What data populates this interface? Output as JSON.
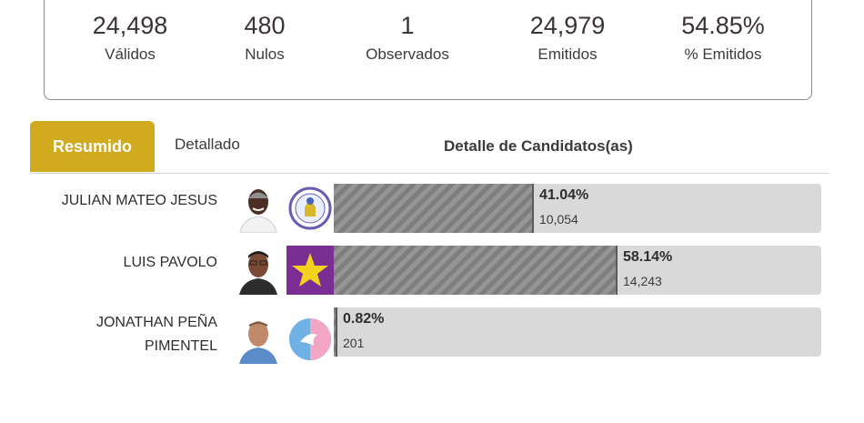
{
  "summary": {
    "validos": {
      "value": "24,498",
      "label": "Válidos"
    },
    "nulos": {
      "value": "480",
      "label": "Nulos"
    },
    "observados": {
      "value": "1",
      "label": "Observados"
    },
    "emitidos": {
      "value": "24,979",
      "label": "Emitidos"
    },
    "pct_emitidos": {
      "value": "54.85%",
      "label": "% Emitidos"
    }
  },
  "tabs": {
    "resumido": "Resumido",
    "detallado": "Detallado"
  },
  "section_title": "Detalle de Candidatos(as)",
  "colors": {
    "accent": "#d2aa1e",
    "bar": "#8a8a8a",
    "track": "#d9d9d9",
    "star_bg": "#7a2d93",
    "star": "#f2d21c"
  },
  "candidates": [
    {
      "name_line1": "JULIAN MATEO JESUS",
      "name_line2": "",
      "percent_label": "41.04%",
      "votes": "10,054",
      "share": 0.4104,
      "party_icon": "pld-seal-icon"
    },
    {
      "name_line1": "LUIS PAVOLO",
      "name_line2": "",
      "percent_label": "58.14%",
      "votes": "14,243",
      "share": 0.5814,
      "party_icon": "star-icon"
    },
    {
      "name_line1": "JONATHAN PEÑA",
      "name_line2": "PIMENTEL",
      "percent_label": "0.82%",
      "votes": "201",
      "share": 0.0082,
      "party_icon": "dove-icon"
    }
  ]
}
